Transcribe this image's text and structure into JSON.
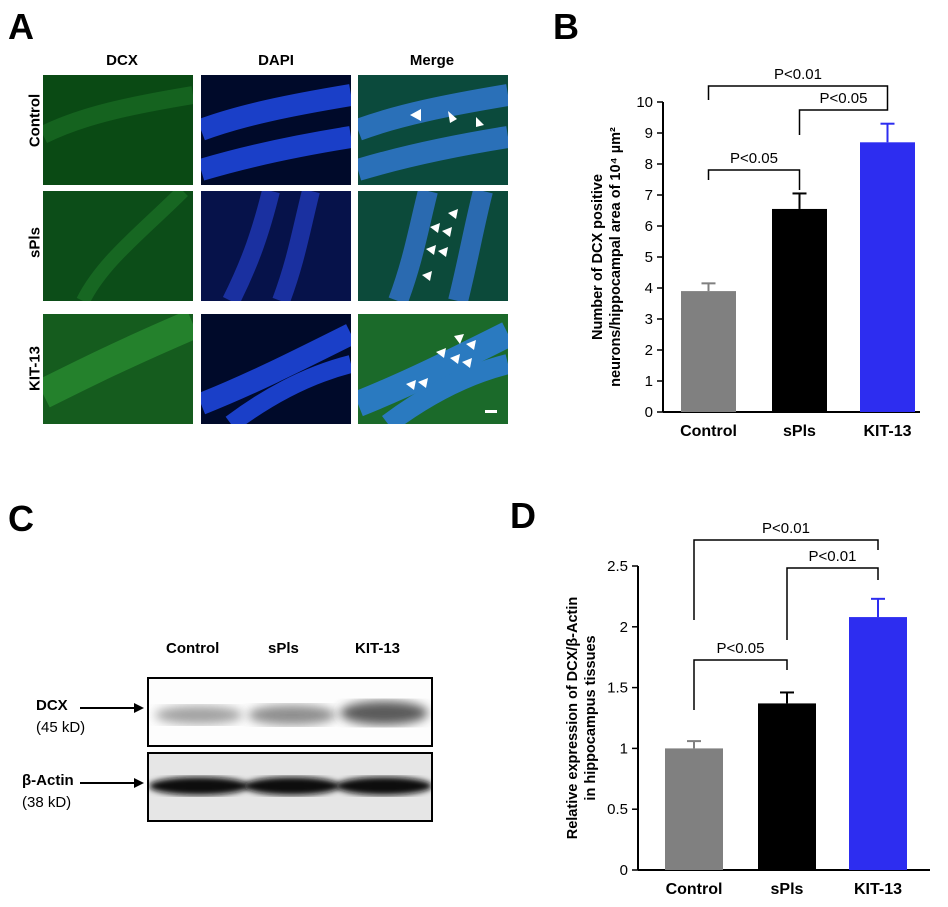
{
  "panels": {
    "a": "A",
    "b": "B",
    "c": "C",
    "d": "D"
  },
  "panel_a": {
    "columns": [
      "DCX",
      "DAPI",
      "Merge"
    ],
    "rows": [
      "Control",
      "sPls",
      "KIT-13"
    ]
  },
  "panel_c": {
    "lanes": [
      "Control",
      "sPls",
      "KIT-13"
    ],
    "dcx_label": "DCX",
    "dcx_kd": "(45 kD)",
    "actin_label": "β-Actin",
    "actin_kd": "(38 kD)"
  },
  "chart_data": [
    {
      "type": "bar",
      "panel": "B",
      "categories": [
        "Control",
        "sPls",
        "KIT-13"
      ],
      "values": [
        3.9,
        6.55,
        8.7
      ],
      "errors": [
        0.25,
        0.5,
        0.6
      ],
      "colors": [
        "#808080",
        "#000000",
        "#2d2df0"
      ],
      "ylabel_line1": "Number of DCX positive",
      "ylabel_line2": "neurons/hippocampal area of 10⁴ µm²",
      "ylim": [
        0,
        10
      ],
      "yticks": [
        "0",
        "1",
        "2",
        "3",
        "4",
        "5",
        "6",
        "7",
        "8",
        "9",
        "10"
      ],
      "comparisons": [
        {
          "from": 0,
          "to": 2,
          "label": "P<0.01"
        },
        {
          "from": 1,
          "to": 2,
          "label": "P<0.05"
        },
        {
          "from": 0,
          "to": 1,
          "label": "P<0.05"
        }
      ]
    },
    {
      "type": "bar",
      "panel": "D",
      "categories": [
        "Control",
        "sPls",
        "KIT-13"
      ],
      "values": [
        1.0,
        1.37,
        2.08
      ],
      "errors": [
        0.06,
        0.09,
        0.15
      ],
      "colors": [
        "#808080",
        "#000000",
        "#2d2df0"
      ],
      "ylabel_line1": "Relative expression of DCX/β-Actin",
      "ylabel_line2": "in hippocampus tissues",
      "ylim": [
        0,
        2.5
      ],
      "yticks": [
        "0",
        "0.5",
        "1",
        "1.5",
        "2",
        "2.5"
      ],
      "comparisons": [
        {
          "from": 0,
          "to": 2,
          "label": "P<0.01"
        },
        {
          "from": 1,
          "to": 2,
          "label": "P<0.01"
        },
        {
          "from": 0,
          "to": 1,
          "label": "P<0.05"
        }
      ]
    }
  ]
}
